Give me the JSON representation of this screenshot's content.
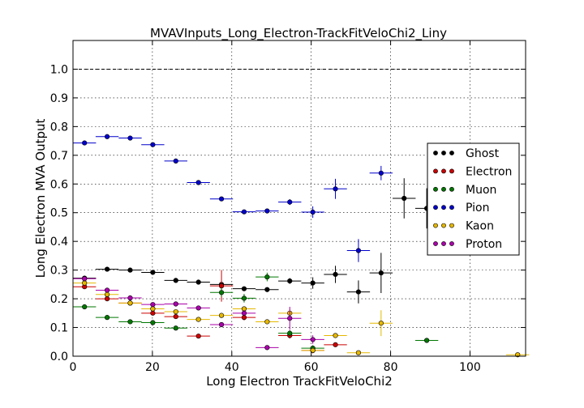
{
  "chart_data": {
    "type": "scatter",
    "title": "MVAVInputs_Long_Electron-TrackFitVeloChi2_Liny",
    "xlabel": "Long Electron TrackFitVeloChi2",
    "ylabel": "Long Electron MVA Output",
    "xlim": [
      0,
      114
    ],
    "ylim": [
      0.0,
      1.1
    ],
    "xticks": [
      0,
      20,
      40,
      60,
      80,
      100
    ],
    "yticks": [
      0.0,
      0.1,
      0.2,
      0.3,
      0.4,
      0.5,
      0.6,
      0.7,
      0.8,
      0.9,
      1.0
    ],
    "reference_line": 1.0,
    "grid": true,
    "legend_position": "right",
    "series": [
      {
        "name": "Ghost",
        "color": "#000000",
        "points": [
          {
            "x": 2.9,
            "y": 0.272,
            "xerr": 2.9,
            "yerr": 0.004
          },
          {
            "x": 8.6,
            "y": 0.303,
            "xerr": 2.9,
            "yerr": 0.004
          },
          {
            "x": 14.4,
            "y": 0.3,
            "xerr": 2.9,
            "yerr": 0.004
          },
          {
            "x": 20.1,
            "y": 0.292,
            "xerr": 2.9,
            "yerr": 0.004
          },
          {
            "x": 25.9,
            "y": 0.264,
            "xerr": 2.9,
            "yerr": 0.004
          },
          {
            "x": 31.6,
            "y": 0.258,
            "xerr": 2.9,
            "yerr": 0.004
          },
          {
            "x": 37.4,
            "y": 0.25,
            "xerr": 2.9,
            "yerr": 0.006
          },
          {
            "x": 43.1,
            "y": 0.235,
            "xerr": 2.9,
            "yerr": 0.006
          },
          {
            "x": 48.9,
            "y": 0.232,
            "xerr": 2.9,
            "yerr": 0.008
          },
          {
            "x": 54.6,
            "y": 0.262,
            "xerr": 2.9,
            "yerr": 0.01
          },
          {
            "x": 60.4,
            "y": 0.255,
            "xerr": 2.9,
            "yerr": 0.02
          },
          {
            "x": 66.1,
            "y": 0.285,
            "xerr": 2.9,
            "yerr": 0.03
          },
          {
            "x": 71.9,
            "y": 0.224,
            "xerr": 2.9,
            "yerr": 0.04
          },
          {
            "x": 77.6,
            "y": 0.29,
            "xerr": 2.9,
            "yerr": 0.07
          },
          {
            "x": 83.4,
            "y": 0.55,
            "xerr": 2.9,
            "yerr": 0.07
          },
          {
            "x": 89.1,
            "y": 0.515,
            "xerr": 2.9,
            "yerr": 0.07
          }
        ]
      },
      {
        "name": "Electron",
        "color": "#cc0000",
        "points": [
          {
            "x": 2.9,
            "y": 0.242,
            "xerr": 2.9,
            "yerr": 0.004
          },
          {
            "x": 8.6,
            "y": 0.2,
            "xerr": 2.9,
            "yerr": 0.004
          },
          {
            "x": 14.4,
            "y": 0.185,
            "xerr": 2.9,
            "yerr": 0.004
          },
          {
            "x": 20.1,
            "y": 0.15,
            "xerr": 2.9,
            "yerr": 0.004
          },
          {
            "x": 25.9,
            "y": 0.138,
            "xerr": 2.9,
            "yerr": 0.005
          },
          {
            "x": 31.6,
            "y": 0.07,
            "xerr": 2.9,
            "yerr": 0.005
          },
          {
            "x": 37.4,
            "y": 0.245,
            "xerr": 2.9,
            "yerr": 0.055
          },
          {
            "x": 43.1,
            "y": 0.135,
            "xerr": 2.9,
            "yerr": 0.01
          },
          {
            "x": 54.6,
            "y": 0.072,
            "xerr": 2.9,
            "yerr": 0.01
          },
          {
            "x": 60.4,
            "y": 0.02,
            "xerr": 2.9,
            "yerr": 0.01
          },
          {
            "x": 66.1,
            "y": 0.04,
            "xerr": 2.9,
            "yerr": 0.005
          }
        ]
      },
      {
        "name": "Muon",
        "color": "#007700",
        "points": [
          {
            "x": 2.9,
            "y": 0.172,
            "xerr": 2.9,
            "yerr": 0.004
          },
          {
            "x": 8.6,
            "y": 0.135,
            "xerr": 2.9,
            "yerr": 0.004
          },
          {
            "x": 14.4,
            "y": 0.12,
            "xerr": 2.9,
            "yerr": 0.004
          },
          {
            "x": 20.1,
            "y": 0.117,
            "xerr": 2.9,
            "yerr": 0.004
          },
          {
            "x": 25.9,
            "y": 0.098,
            "xerr": 2.9,
            "yerr": 0.004
          },
          {
            "x": 37.4,
            "y": 0.222,
            "xerr": 2.9,
            "yerr": 0.015
          },
          {
            "x": 43.1,
            "y": 0.202,
            "xerr": 2.9,
            "yerr": 0.015
          },
          {
            "x": 48.9,
            "y": 0.276,
            "xerr": 2.9,
            "yerr": 0.015
          },
          {
            "x": 54.6,
            "y": 0.08,
            "xerr": 2.9,
            "yerr": 0.01
          },
          {
            "x": 60.4,
            "y": 0.028,
            "xerr": 2.9,
            "yerr": 0.01
          },
          {
            "x": 89.1,
            "y": 0.055,
            "xerr": 2.9,
            "yerr": 0.004
          }
        ]
      },
      {
        "name": "Pion",
        "color": "#0000cc",
        "points": [
          {
            "x": 2.9,
            "y": 0.743,
            "xerr": 2.9,
            "yerr": 0.004
          },
          {
            "x": 8.6,
            "y": 0.765,
            "xerr": 2.9,
            "yerr": 0.004
          },
          {
            "x": 14.4,
            "y": 0.76,
            "xerr": 2.9,
            "yerr": 0.004
          },
          {
            "x": 20.1,
            "y": 0.737,
            "xerr": 2.9,
            "yerr": 0.004
          },
          {
            "x": 25.9,
            "y": 0.68,
            "xerr": 2.9,
            "yerr": 0.004
          },
          {
            "x": 31.6,
            "y": 0.605,
            "xerr": 2.9,
            "yerr": 0.004
          },
          {
            "x": 37.4,
            "y": 0.548,
            "xerr": 2.9,
            "yerr": 0.005
          },
          {
            "x": 43.1,
            "y": 0.503,
            "xerr": 2.9,
            "yerr": 0.005
          },
          {
            "x": 48.9,
            "y": 0.506,
            "xerr": 2.9,
            "yerr": 0.006
          },
          {
            "x": 54.6,
            "y": 0.537,
            "xerr": 2.9,
            "yerr": 0.01
          },
          {
            "x": 60.4,
            "y": 0.502,
            "xerr": 2.9,
            "yerr": 0.02
          },
          {
            "x": 66.1,
            "y": 0.583,
            "xerr": 2.9,
            "yerr": 0.035
          },
          {
            "x": 71.9,
            "y": 0.368,
            "xerr": 2.9,
            "yerr": 0.04
          },
          {
            "x": 77.6,
            "y": 0.638,
            "xerr": 2.9,
            "yerr": 0.025
          }
        ]
      },
      {
        "name": "Kaon",
        "color": "#e6b800",
        "points": [
          {
            "x": 2.9,
            "y": 0.255,
            "xerr": 2.9,
            "yerr": 0.004
          },
          {
            "x": 8.6,
            "y": 0.215,
            "xerr": 2.9,
            "yerr": 0.004
          },
          {
            "x": 14.4,
            "y": 0.185,
            "xerr": 2.9,
            "yerr": 0.004
          },
          {
            "x": 20.1,
            "y": 0.165,
            "xerr": 2.9,
            "yerr": 0.004
          },
          {
            "x": 25.9,
            "y": 0.155,
            "xerr": 2.9,
            "yerr": 0.004
          },
          {
            "x": 31.6,
            "y": 0.128,
            "xerr": 2.9,
            "yerr": 0.004
          },
          {
            "x": 37.4,
            "y": 0.142,
            "xerr": 2.9,
            "yerr": 0.005
          },
          {
            "x": 43.1,
            "y": 0.165,
            "xerr": 2.9,
            "yerr": 0.008
          },
          {
            "x": 48.9,
            "y": 0.12,
            "xerr": 2.9,
            "yerr": 0.008
          },
          {
            "x": 54.6,
            "y": 0.15,
            "xerr": 2.9,
            "yerr": 0.015
          },
          {
            "x": 60.4,
            "y": 0.02,
            "xerr": 2.9,
            "yerr": 0.005
          },
          {
            "x": 66.1,
            "y": 0.072,
            "xerr": 2.9,
            "yerr": 0.005
          },
          {
            "x": 71.9,
            "y": 0.012,
            "xerr": 2.9,
            "yerr": 0.003
          },
          {
            "x": 77.6,
            "y": 0.115,
            "xerr": 2.9,
            "yerr": 0.045
          },
          {
            "x": 112.0,
            "y": 0.005,
            "xerr": 2.9,
            "yerr": 0.003
          }
        ]
      },
      {
        "name": "Proton",
        "color": "#aa00aa",
        "points": [
          {
            "x": 2.9,
            "y": 0.27,
            "xerr": 2.9,
            "yerr": 0.004
          },
          {
            "x": 8.6,
            "y": 0.23,
            "xerr": 2.9,
            "yerr": 0.004
          },
          {
            "x": 14.4,
            "y": 0.203,
            "xerr": 2.9,
            "yerr": 0.004
          },
          {
            "x": 20.1,
            "y": 0.18,
            "xerr": 2.9,
            "yerr": 0.004
          },
          {
            "x": 25.9,
            "y": 0.182,
            "xerr": 2.9,
            "yerr": 0.004
          },
          {
            "x": 31.6,
            "y": 0.168,
            "xerr": 2.9,
            "yerr": 0.004
          },
          {
            "x": 37.4,
            "y": 0.11,
            "xerr": 2.9,
            "yerr": 0.005
          },
          {
            "x": 43.1,
            "y": 0.15,
            "xerr": 2.9,
            "yerr": 0.01
          },
          {
            "x": 48.9,
            "y": 0.03,
            "xerr": 2.9,
            "yerr": 0.004
          },
          {
            "x": 54.6,
            "y": 0.132,
            "xerr": 2.9,
            "yerr": 0.04
          },
          {
            "x": 60.4,
            "y": 0.058,
            "xerr": 2.9,
            "yerr": 0.015
          }
        ]
      }
    ]
  }
}
